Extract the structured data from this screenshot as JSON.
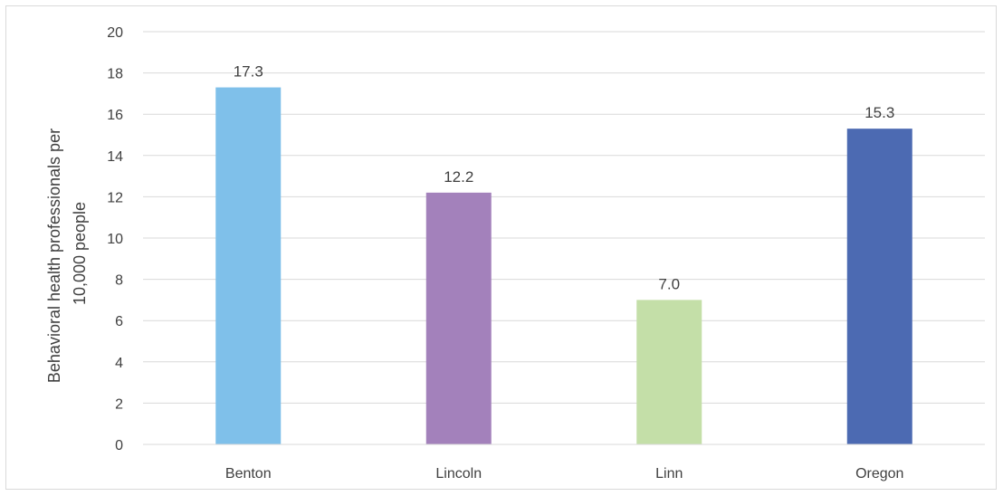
{
  "chart_data": {
    "type": "bar",
    "title": "",
    "xlabel": "",
    "ylabel_lines": [
      "Behavioral health professionals per",
      "10,000 people"
    ],
    "categories": [
      "Benton",
      "Lincoln",
      "Linn",
      "Oregon"
    ],
    "values": [
      17.3,
      12.2,
      7.0,
      15.3
    ],
    "value_labels": [
      "17.3",
      "12.2",
      "7.0",
      "15.3"
    ],
    "colors": [
      "#7fc0ea",
      "#a381bb",
      "#c4dfa8",
      "#4c6ab2"
    ],
    "ylim": [
      0,
      20
    ],
    "y_ticks": [
      0,
      2,
      4,
      6,
      8,
      10,
      12,
      14,
      16,
      18,
      20
    ],
    "grid": true,
    "legend": "none"
  }
}
